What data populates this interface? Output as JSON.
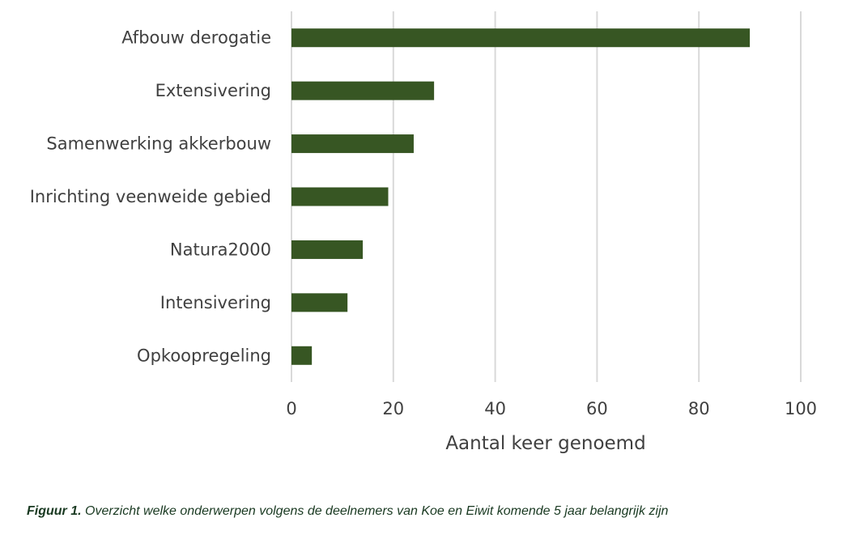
{
  "chart_data": {
    "type": "bar",
    "orientation": "horizontal",
    "categories": [
      "Afbouw derogatie",
      "Extensivering",
      "Samenwerking akkerbouw",
      "Inrichting veenweide gebied",
      "Natura2000",
      "Intensivering",
      "Opkoopregeling"
    ],
    "values": [
      90,
      28,
      24,
      19,
      14,
      11,
      4
    ],
    "xlabel": "Aantal keer genoemd",
    "ylabel": "",
    "xlim": [
      0,
      100
    ],
    "xticks": [
      "0",
      "20",
      "40",
      "60",
      "80",
      "100"
    ],
    "grid": "vertical",
    "bar_color": "#375623",
    "grid_color": "#d9d9d9"
  },
  "caption": {
    "lead": "Figuur 1.",
    "text": " Overzicht welke onderwerpen volgens de deelnemers van Koe en Eiwit komende 5 jaar belangrijk zijn"
  }
}
